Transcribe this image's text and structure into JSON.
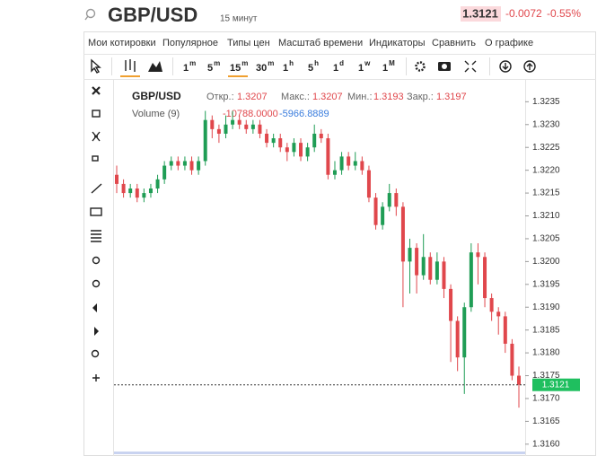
{
  "header": {
    "symbol": "GBP/USD",
    "interval": "15 минут",
    "price": "1.3121",
    "change": "-0.0072",
    "change_pct": "-0.55%"
  },
  "menu": [
    "Мои котировки",
    "Популярное",
    "Типы цен",
    "Масштаб времени",
    "Индикаторы",
    "Сравнить",
    "О графике"
  ],
  "intervals": [
    {
      "num": "1",
      "unit": "m"
    },
    {
      "num": "5",
      "unit": "m"
    },
    {
      "num": "15",
      "unit": "m"
    },
    {
      "num": "30",
      "unit": "m"
    },
    {
      "num": "1",
      "unit": "h"
    },
    {
      "num": "5",
      "unit": "h"
    },
    {
      "num": "1",
      "unit": "d"
    },
    {
      "num": "1",
      "unit": "w"
    },
    {
      "num": "1",
      "unit": "M"
    }
  ],
  "legend": {
    "symbol": "GBP/USD",
    "open_label": "Откр.:",
    "open": "1.3207",
    "high_label": "Макс.:",
    "high": "1.3207",
    "low_label": "Мин.:",
    "low": "1.3193",
    "close_label": "Закр.:",
    "close": "1.3197",
    "volume_label": "Volume (9)",
    "volume_1": "-10788.0000",
    "volume_2": "-5966.8889"
  },
  "chart_data": {
    "type": "candlestick",
    "up_color": "#1f9d55",
    "down_color": "#e0474c",
    "last_price_label": "1.3121",
    "label_color": "#1fbf5f",
    "open": [
      1.3219,
      1.3217,
      1.3215,
      1.3216,
      1.3214,
      1.3215,
      1.3216,
      1.3218,
      1.3221,
      1.3222,
      1.3221,
      1.3222,
      1.322,
      1.3222,
      1.3231,
      1.3229,
      1.3228,
      1.323,
      1.3231,
      1.323,
      1.3229,
      1.323,
      1.3228,
      1.3226,
      1.3227,
      1.3225,
      1.3224,
      1.3226,
      1.3223,
      1.3225,
      1.3228,
      1.3227,
      1.3219,
      1.322,
      1.3223,
      1.3221,
      1.3222,
      1.322,
      1.3214,
      1.3208,
      1.3212,
      1.3215,
      1.3212,
      1.32,
      1.3203,
      1.3197,
      1.3201,
      1.3196,
      1.32,
      1.3194,
      1.3187,
      1.3179,
      1.319,
      1.3202,
      1.3201,
      1.3192,
      1.3189,
      1.3188,
      1.3182,
      1.3175
    ],
    "high": [
      1.3221,
      1.3218,
      1.3217,
      1.3217,
      1.3216,
      1.3217,
      1.3219,
      1.3222,
      1.3223,
      1.3223,
      1.3223,
      1.3223,
      1.3223,
      1.3233,
      1.3232,
      1.323,
      1.3232,
      1.3233,
      1.3232,
      1.3231,
      1.3231,
      1.3231,
      1.3229,
      1.3228,
      1.3228,
      1.3226,
      1.3227,
      1.3227,
      1.3226,
      1.323,
      1.3229,
      1.3228,
      1.3222,
      1.3224,
      1.3224,
      1.3224,
      1.3223,
      1.3221,
      1.3215,
      1.3213,
      1.3217,
      1.3216,
      1.3213,
      1.3205,
      1.3204,
      1.3206,
      1.3202,
      1.3202,
      1.3201,
      1.3195,
      1.3188,
      1.3191,
      1.3204,
      1.3204,
      1.3202,
      1.3193,
      1.319,
      1.3189,
      1.3183,
      1.3177
    ],
    "low": [
      1.3215,
      1.3214,
      1.3214,
      1.3213,
      1.3213,
      1.3214,
      1.3215,
      1.3217,
      1.322,
      1.322,
      1.322,
      1.3219,
      1.3219,
      1.3221,
      1.3227,
      1.3226,
      1.3227,
      1.3229,
      1.3229,
      1.3228,
      1.3228,
      1.3227,
      1.3225,
      1.3225,
      1.3224,
      1.3222,
      1.3223,
      1.3222,
      1.3222,
      1.3224,
      1.3226,
      1.3218,
      1.3218,
      1.3219,
      1.322,
      1.322,
      1.3219,
      1.3213,
      1.3207,
      1.3207,
      1.3211,
      1.321,
      1.319,
      1.3193,
      1.3193,
      1.3196,
      1.3195,
      1.3195,
      1.3192,
      1.3178,
      1.3176,
      1.3171,
      1.3189,
      1.3195,
      1.319,
      1.3187,
      1.3184,
      1.318,
      1.3174,
      1.3168
    ],
    "close": [
      1.3217,
      1.3215,
      1.3216,
      1.3214,
      1.3215,
      1.3216,
      1.3218,
      1.3221,
      1.3222,
      1.3221,
      1.3222,
      1.322,
      1.3222,
      1.3231,
      1.3229,
      1.3228,
      1.323,
      1.3231,
      1.323,
      1.3229,
      1.323,
      1.3228,
      1.3226,
      1.3227,
      1.3225,
      1.3224,
      1.3226,
      1.3223,
      1.3225,
      1.3228,
      1.3227,
      1.3219,
      1.322,
      1.3223,
      1.3221,
      1.3222,
      1.322,
      1.3214,
      1.3208,
      1.3212,
      1.3215,
      1.3212,
      1.32,
      1.3203,
      1.3197,
      1.3201,
      1.3196,
      1.32,
      1.3194,
      1.3187,
      1.3179,
      1.319,
      1.3202,
      1.3201,
      1.3192,
      1.3189,
      1.3188,
      1.3182,
      1.3175,
      1.3173
    ],
    "ylim": [
      1.3158,
      1.3239
    ],
    "yticks": [
      {
        "value": 1.316,
        "label": "1.3160"
      },
      1.3165,
      {
        "value": 1.317,
        "label": "1.3170"
      },
      1.3175,
      {
        "value": 1.318,
        "label": "1.3180"
      },
      1.3185,
      {
        "value": 1.319,
        "label": "1.3190"
      },
      1.3195,
      {
        "value": 1.32,
        "label": "1.3200"
      },
      1.3205,
      {
        "value": 1.321,
        "label": "1.3210"
      },
      1.3215,
      {
        "value": 1.322,
        "label": "1.3220"
      },
      1.3225,
      {
        "value": 1.323,
        "label": "1.3230"
      },
      1.3235
    ]
  }
}
